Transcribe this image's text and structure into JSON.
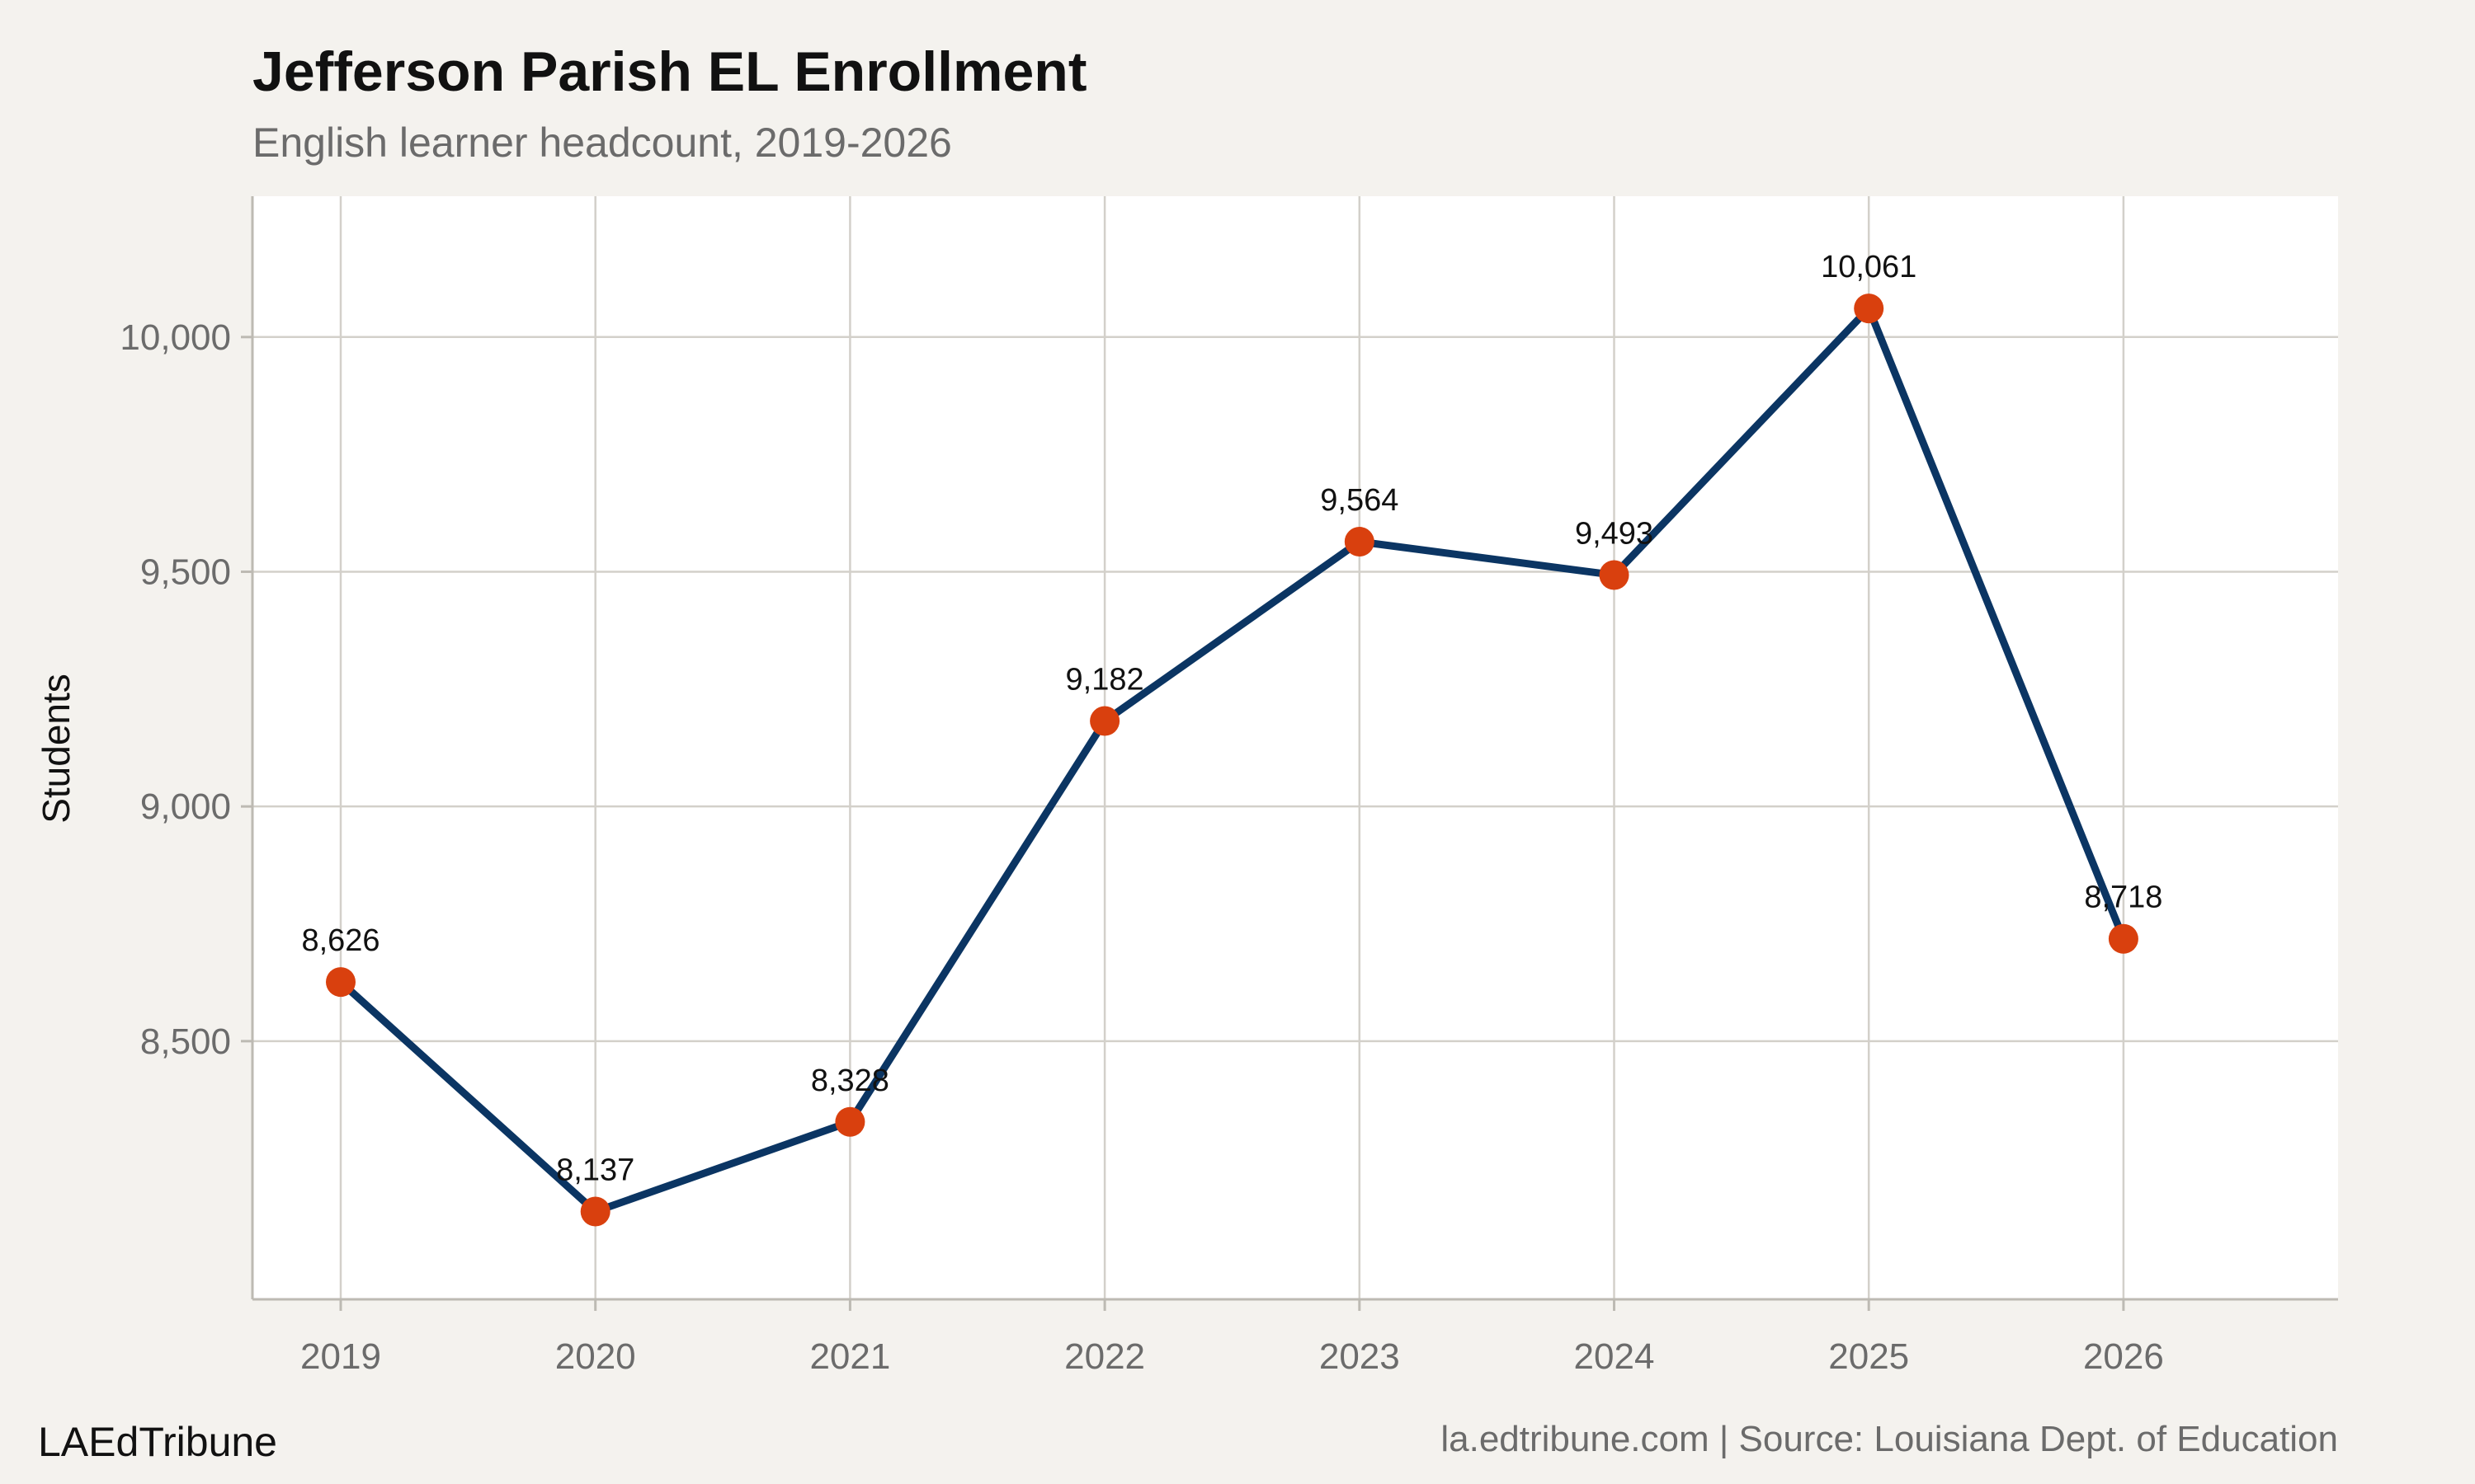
{
  "chart_data": {
    "type": "line",
    "title": "Jefferson Parish EL Enrollment",
    "subtitle": "English learner headcount, 2019-2026",
    "xlabel": "",
    "ylabel": "Students",
    "x": [
      "2019",
      "2020",
      "2021",
      "2022",
      "2023",
      "2024",
      "2025",
      "2026"
    ],
    "values": [
      8626,
      8137,
      8328,
      9182,
      9564,
      9493,
      10061,
      8718
    ],
    "data_labels": [
      "8,626",
      "8,137",
      "8,328",
      "9,182",
      "9,564",
      "9,493",
      "10,061",
      "8,718"
    ],
    "yticks": [
      8500,
      9000,
      9500,
      10000
    ],
    "ytick_labels": [
      "8,500",
      "9,000",
      "9,500",
      "10,000"
    ],
    "ylim": [
      7950,
      10300
    ],
    "grid": true,
    "legend": "none",
    "line_color": "#0b3563",
    "marker_color": "#d9400e"
  },
  "footer": {
    "brand": "LAEdTribune",
    "source": "la.edtribune.com | Source: Louisiana Dept. of Education"
  }
}
